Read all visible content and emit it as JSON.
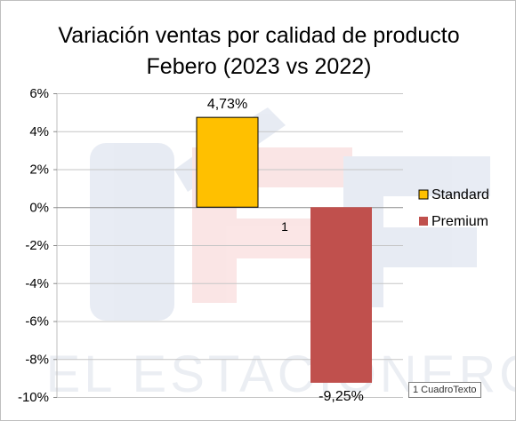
{
  "chart_data": {
    "type": "bar",
    "title_lines": [
      "Variación ventas por calidad de producto",
      "Febero (2023 vs 2022)"
    ],
    "categories": [
      "1"
    ],
    "series": [
      {
        "name": "Standard",
        "values": [
          4.73
        ],
        "label": "4,73%",
        "color": "#ffc000"
      },
      {
        "name": "Premium",
        "values": [
          -9.25
        ],
        "label": "-9,25%",
        "color": "#c0504d"
      }
    ],
    "ylim": [
      -10,
      6
    ],
    "yticks": [
      6,
      4,
      2,
      0,
      -2,
      -4,
      -6,
      -8,
      -10
    ],
    "ytick_labels": [
      "6%",
      "4%",
      "2%",
      "0%",
      "-2%",
      "-4%",
      "-6%",
      "-8%",
      "-10%"
    ],
    "grid": true,
    "legend_position": "right"
  },
  "watermark": {
    "text": "EL ESTACIONERO",
    "monogram": "EE",
    "colors": {
      "blue": "#5b7ab0",
      "red": "#e05050"
    }
  },
  "textbox_tag": "1 CuadroTexto"
}
